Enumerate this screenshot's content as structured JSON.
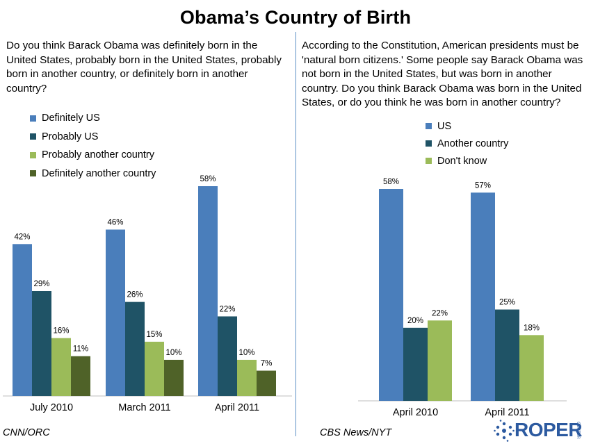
{
  "title": "Obama’s Country of Birth",
  "left_panel": {
    "question": "Do you think Barack Obama was definitely born in the United States, probably born in the United States, probably born in another country, or definitely born in another country?",
    "source": "CNN/ORC"
  },
  "right_panel": {
    "question": "According to the Constitution, American presidents must be 'natural born citizens.'  Some people say Barack Obama was not born in the United States, but was born in another country.  Do you think Barack Obama was born in the United States, or do you think he was born in another country?",
    "source": "CBS News/NYT"
  },
  "logo": {
    "text": "ROPER",
    "subtext": "CENTER"
  },
  "colors": {
    "blue": "#4a7ebb",
    "dark_teal": "#1f5366",
    "light_green": "#9bbb59",
    "dark_olive": "#4f6228",
    "divider": "#5a8fc4"
  },
  "chart_data": [
    {
      "type": "bar",
      "title": "",
      "categories": [
        "July 2010",
        "March 2011",
        "April 2011"
      ],
      "series": [
        {
          "name": "Definitely US",
          "color": "#4a7ebb",
          "values": [
            42,
            46,
            58
          ],
          "labels": [
            "42%",
            "46%",
            "58%"
          ]
        },
        {
          "name": "Probably US",
          "color": "#1f5366",
          "values": [
            29,
            26,
            22
          ],
          "labels": [
            "29%",
            "26%",
            "22%"
          ]
        },
        {
          "name": "Probably another country",
          "color": "#9bbb59",
          "values": [
            16,
            15,
            10
          ],
          "labels": [
            "16%",
            "15%",
            "10%"
          ]
        },
        {
          "name": "Definitely another country",
          "color": "#4f6228",
          "values": [
            11,
            10,
            7
          ],
          "labels": [
            "11%",
            "10%",
            "7%"
          ]
        }
      ],
      "ylim": [
        0,
        58
      ],
      "legend": "top-left",
      "grid": false
    },
    {
      "type": "bar",
      "title": "",
      "categories": [
        "April 2010",
        "April 2011"
      ],
      "series": [
        {
          "name": "US",
          "color": "#4a7ebb",
          "values": [
            58,
            57
          ],
          "labels": [
            "58%",
            "57%"
          ]
        },
        {
          "name": "Another country",
          "color": "#1f5366",
          "values": [
            20,
            25
          ],
          "labels": [
            "20%",
            "25%"
          ]
        },
        {
          "name": "Don't know",
          "color": "#9bbb59",
          "values": [
            22,
            18
          ],
          "labels": [
            "22%",
            "18%"
          ]
        }
      ],
      "ylim": [
        0,
        58
      ],
      "legend": "top-right",
      "grid": false
    }
  ]
}
